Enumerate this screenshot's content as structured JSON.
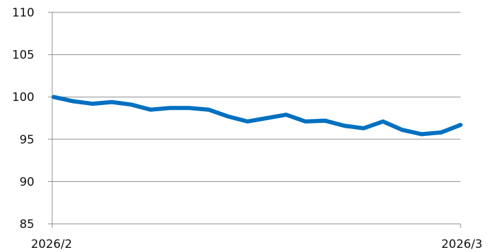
{
  "chart_data": {
    "type": "line",
    "title": "",
    "xlabel": "",
    "ylabel": "",
    "ylim": [
      85,
      110
    ],
    "yticks": [
      85,
      90,
      95,
      100,
      105,
      110
    ],
    "xtick_labels": [
      "2026/2",
      "2026/3"
    ],
    "grid": true,
    "series": [
      {
        "values": [
          100.0,
          99.5,
          99.2,
          99.4,
          99.1,
          98.5,
          98.7,
          98.7,
          98.5,
          97.7,
          97.1,
          97.5,
          97.9,
          97.1,
          97.2,
          96.6,
          96.3,
          97.1,
          96.1,
          95.6,
          95.8,
          96.7
        ],
        "color": "#0070c0"
      }
    ]
  }
}
